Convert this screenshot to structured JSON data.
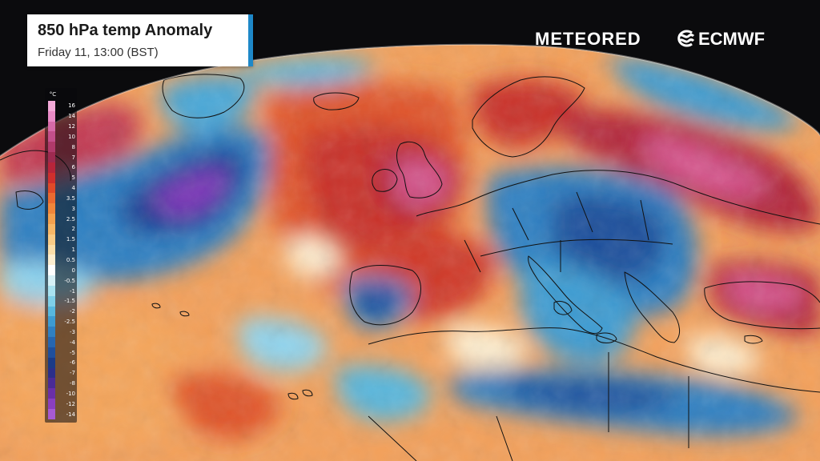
{
  "title": {
    "main": "850 hPa temp Anomaly",
    "subtitle": "Friday 11, 13:00 (BST)"
  },
  "branding": {
    "meteored": "METEORED",
    "ecmwf": "ECMWF",
    "ecmwf_logo_icon": "ecmwf-logo-icon"
  },
  "legend": {
    "unit": "°C",
    "stops": [
      {
        "label": "16",
        "color": "#f3a9d8"
      },
      {
        "label": "14",
        "color": "#e88ac6"
      },
      {
        "label": "12",
        "color": "#d66aa8"
      },
      {
        "label": "10",
        "color": "#c34f8a"
      },
      {
        "label": "8",
        "color": "#b03a6a"
      },
      {
        "label": "7",
        "color": "#9e2a50"
      },
      {
        "label": "6",
        "color": "#b7253a"
      },
      {
        "label": "5",
        "color": "#cf2f2c"
      },
      {
        "label": "4",
        "color": "#e04a28"
      },
      {
        "label": "3.5",
        "color": "#ea6a30"
      },
      {
        "label": "3",
        "color": "#f0863a"
      },
      {
        "label": "2.5",
        "color": "#f4a14e"
      },
      {
        "label": "2",
        "color": "#f7b767"
      },
      {
        "label": "1.5",
        "color": "#f9cb86"
      },
      {
        "label": "1",
        "color": "#fbdea9"
      },
      {
        "label": "0.5",
        "color": "#fdeed0"
      },
      {
        "label": "0",
        "color": "#ffffff"
      },
      {
        "label": "-0.5",
        "color": "#d6f1f7"
      },
      {
        "label": "-1",
        "color": "#a9e2f0"
      },
      {
        "label": "-1.5",
        "color": "#7fcfe8"
      },
      {
        "label": "-2",
        "color": "#57b7de"
      },
      {
        "label": "-2.5",
        "color": "#3d9bd1"
      },
      {
        "label": "-3",
        "color": "#2f80c2"
      },
      {
        "label": "-4",
        "color": "#2666b0"
      },
      {
        "label": "-5",
        "color": "#1f4f9c"
      },
      {
        "label": "-6",
        "color": "#1b3b87"
      },
      {
        "label": "-7",
        "color": "#2b2f8a"
      },
      {
        "label": "-8",
        "color": "#4a2b96"
      },
      {
        "label": "-10",
        "color": "#6a2fa8"
      },
      {
        "label": "-12",
        "color": "#8a3fbf"
      },
      {
        "label": "-14",
        "color": "#a75ad3"
      }
    ]
  },
  "colors": {
    "background": "#0b0b0d",
    "title_accent": "#1e88c8",
    "warm_deep": "#b3263a",
    "warm": "#e0542a",
    "warm_light": "#f5a55a",
    "neutral": "#fdeed0",
    "cool_light": "#8fd3ec",
    "cool": "#2f80c2",
    "cool_deep": "#1f3f95",
    "extreme_cold": "#7a36b8",
    "extreme_warm": "#d7568f"
  }
}
